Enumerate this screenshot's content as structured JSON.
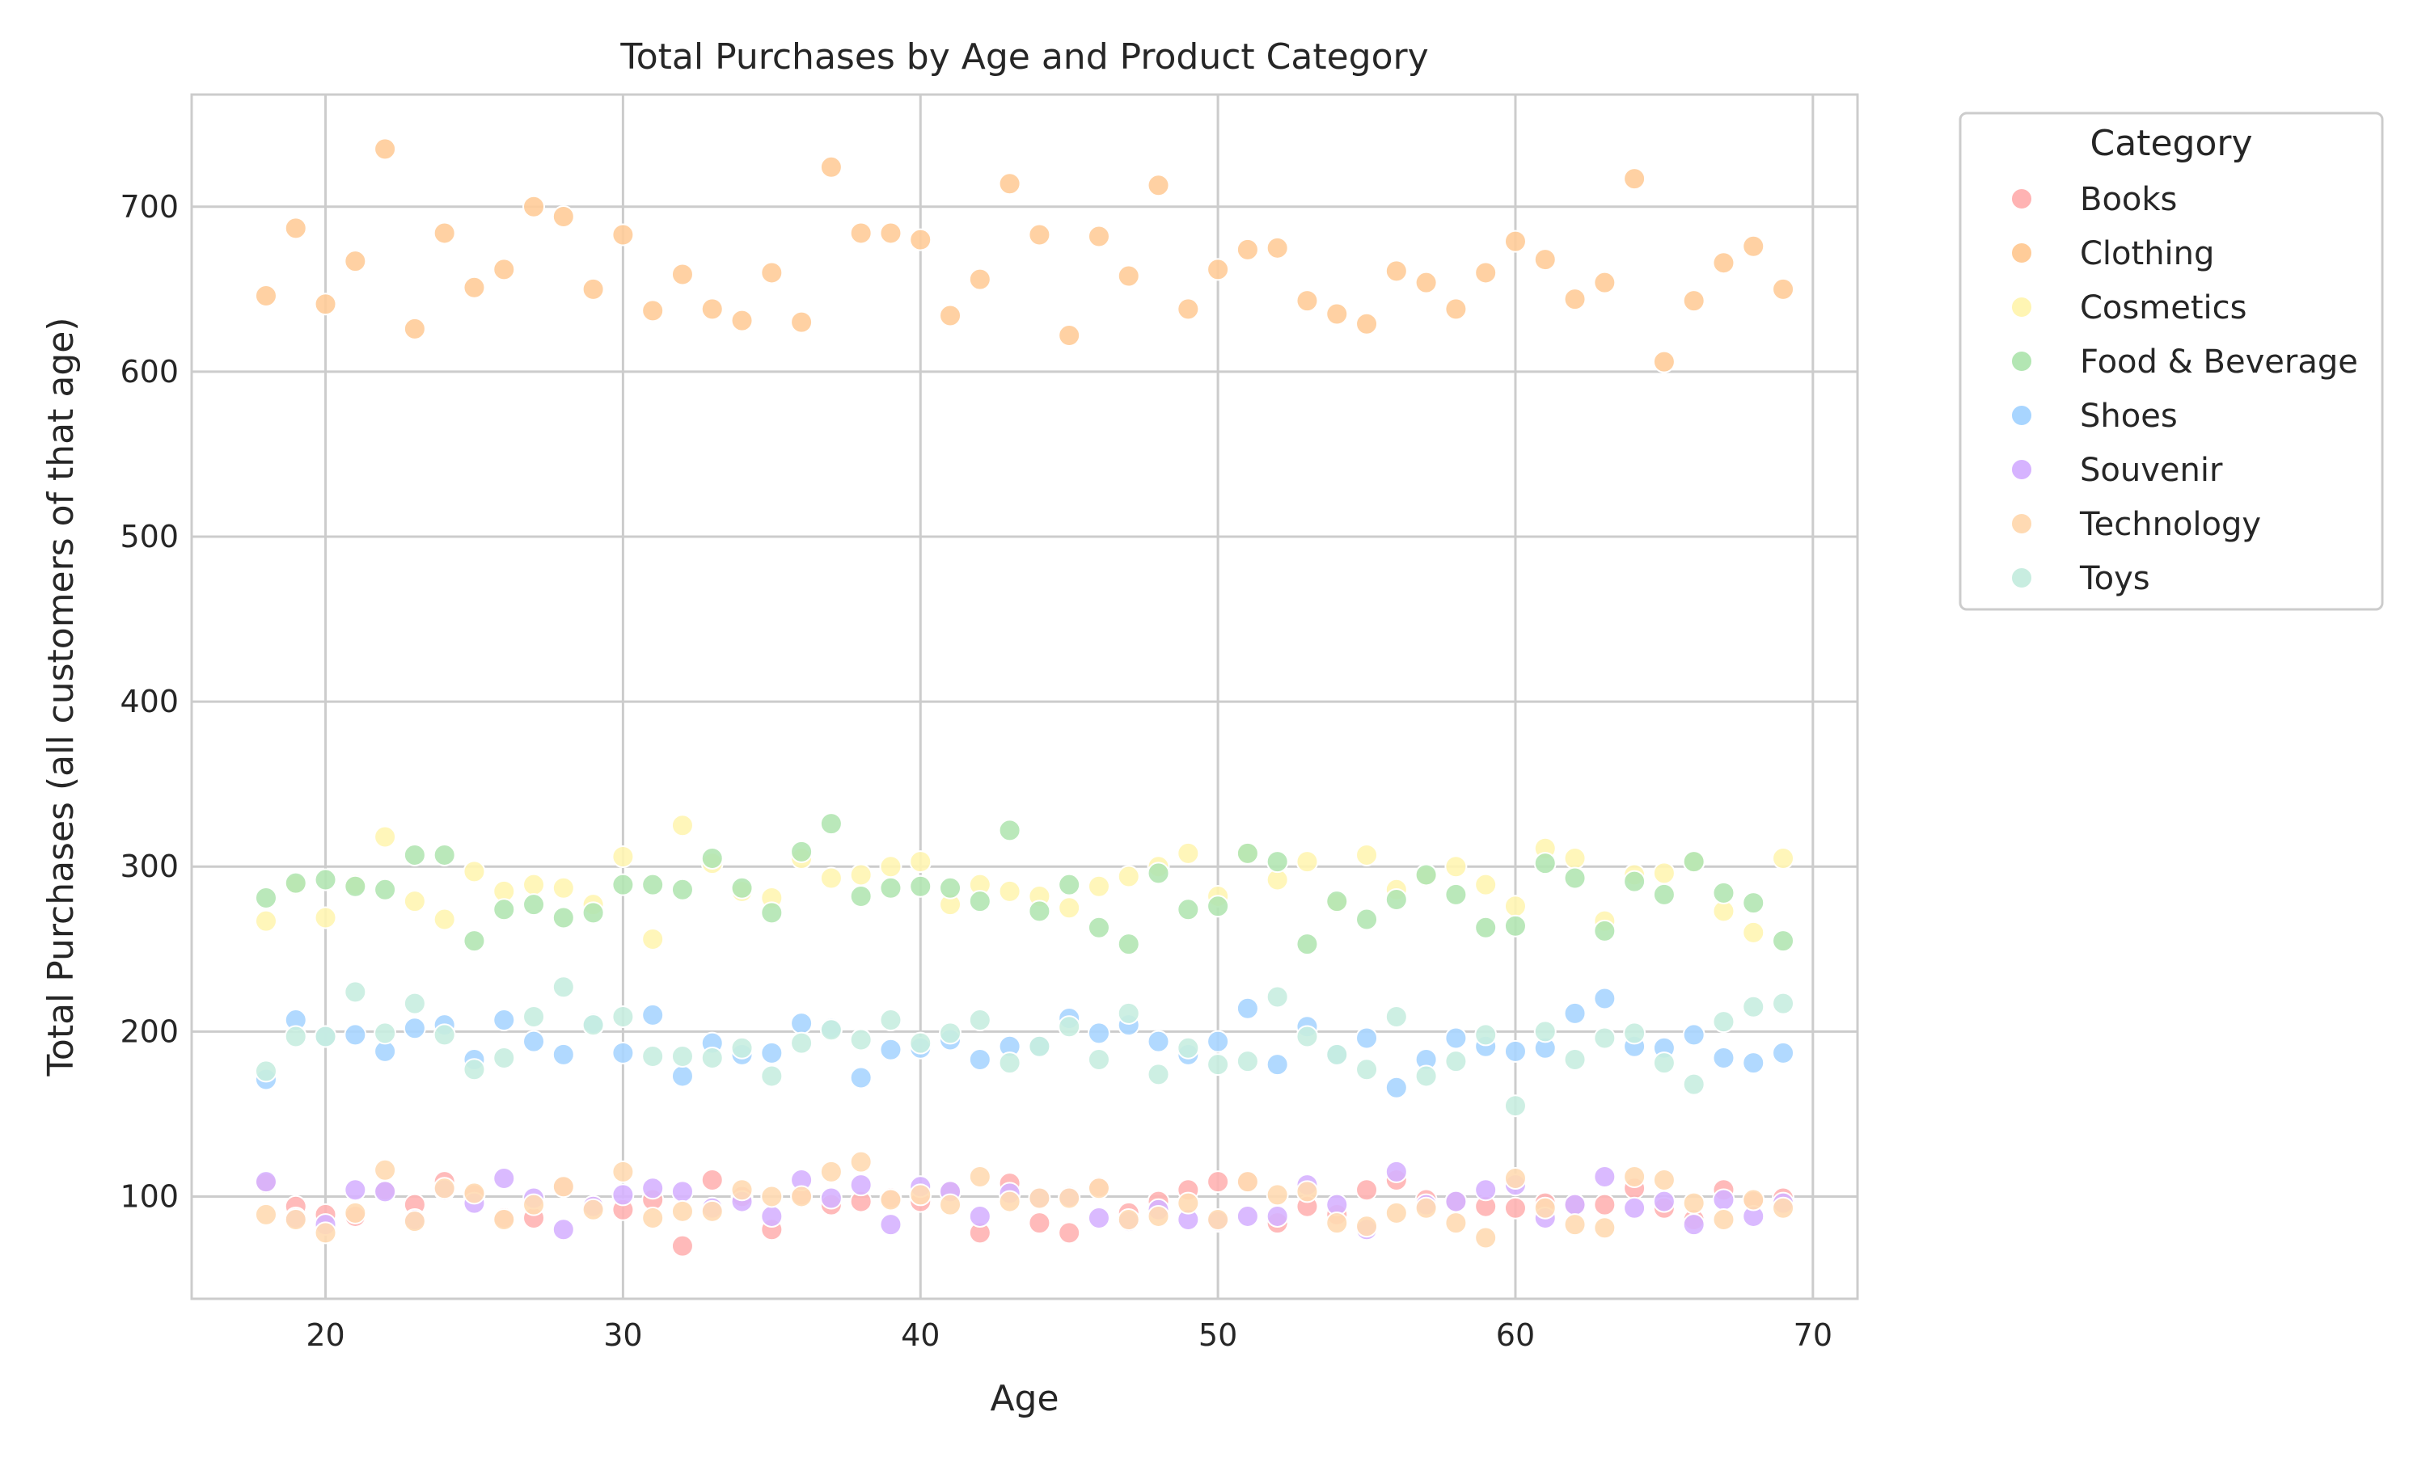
{
  "chart_data": {
    "type": "scatter",
    "title": "Total Purchases by Age and Product Category",
    "xlabel": "Age",
    "ylabel": "Total Purchases (all customers of that age)",
    "xlim": [
      15.5,
      71.5
    ],
    "ylim": [
      38,
      768
    ],
    "xticks": [
      20,
      30,
      40,
      50,
      60,
      70
    ],
    "yticks": [
      100,
      200,
      300,
      400,
      500,
      600,
      700
    ],
    "grid": true,
    "legend": {
      "title": "Category",
      "placement": "outside-top-right"
    },
    "x": [
      18,
      19,
      20,
      21,
      22,
      23,
      24,
      25,
      26,
      27,
      28,
      29,
      30,
      31,
      32,
      33,
      34,
      35,
      36,
      37,
      38,
      39,
      40,
      41,
      42,
      43,
      44,
      45,
      46,
      47,
      48,
      49,
      50,
      51,
      52,
      53,
      54,
      55,
      56,
      57,
      58,
      59,
      60,
      61,
      62,
      63,
      64,
      65,
      66,
      67,
      68,
      69
    ],
    "series": [
      {
        "name": "Books",
        "color": "#ffb3b3",
        "values": [
          108,
          94,
          89,
          88,
          104,
          95,
          109,
          101,
          87,
          87,
          106,
          94,
          92,
          98,
          70,
          110,
          100,
          80,
          101,
          95,
          97,
          99,
          97,
          103,
          78,
          108,
          84,
          78,
          106,
          90,
          97,
          104,
          109,
          109,
          84,
          94,
          89,
          104,
          110,
          98,
          97,
          94,
          93,
          96,
          95,
          95,
          105,
          93,
          86,
          104,
          97,
          99
        ]
      },
      {
        "name": "Clothing",
        "color": "#ffcc99",
        "values": [
          646,
          687,
          641,
          667,
          735,
          626,
          684,
          651,
          662,
          700,
          694,
          650,
          683,
          637,
          659,
          638,
          631,
          660,
          630,
          724,
          684,
          684,
          680,
          634,
          656,
          714,
          683,
          622,
          682,
          658,
          713,
          638,
          662,
          674,
          675,
          643,
          635,
          629,
          661,
          654,
          638,
          660,
          679,
          668,
          644,
          654,
          717,
          606,
          643,
          666,
          676,
          650
        ]
      },
      {
        "name": "Cosmetics",
        "color": "#fff5b3",
        "values": [
          267,
          289,
          269,
          289,
          318,
          279,
          268,
          297,
          285,
          289,
          287,
          277,
          306,
          256,
          325,
          302,
          285,
          281,
          305,
          293,
          295,
          300,
          303,
          277,
          289,
          285,
          282,
          275,
          288,
          294,
          300,
          308,
          282,
          308,
          292,
          303,
          278,
          307,
          286,
          294,
          300,
          289,
          276,
          311,
          305,
          267,
          295,
          296,
          303,
          273,
          260,
          305
        ]
      },
      {
        "name": "Food & Beverage",
        "color": "#b3e6b3",
        "values": [
          281,
          290,
          292,
          288,
          286,
          307,
          307,
          255,
          274,
          277,
          269,
          272,
          289,
          289,
          286,
          305,
          287,
          272,
          309,
          326,
          282,
          287,
          288,
          287,
          279,
          322,
          273,
          289,
          263,
          253,
          296,
          274,
          276,
          308,
          303,
          253,
          279,
          268,
          280,
          295,
          283,
          263,
          264,
          302,
          293,
          261,
          291,
          283,
          303,
          284,
          278,
          255
        ]
      },
      {
        "name": "Shoes",
        "color": "#a8d5ff",
        "values": [
          171,
          207,
          197,
          198,
          188,
          202,
          204,
          183,
          207,
          194,
          186,
          205,
          187,
          210,
          173,
          193,
          186,
          187,
          205,
          202,
          172,
          189,
          190,
          195,
          183,
          191,
          191,
          208,
          199,
          204,
          194,
          186,
          194,
          214,
          180,
          203,
          186,
          196,
          166,
          183,
          196,
          191,
          188,
          190,
          211,
          220,
          191,
          190,
          198,
          184,
          181,
          187
        ]
      },
      {
        "name": "Souvenir",
        "color": "#d6b3ff",
        "values": [
          109,
          87,
          83,
          104,
          103,
          86,
          104,
          96,
          111,
          99,
          80,
          94,
          101,
          105,
          103,
          93,
          97,
          88,
          110,
          99,
          107,
          83,
          106,
          103,
          88,
          102,
          99,
          100,
          87,
          85,
          92,
          86,
          85,
          88,
          88,
          107,
          95,
          80,
          115,
          95,
          97,
          104,
          107,
          87,
          95,
          112,
          93,
          97,
          83,
          98,
          88,
          96
        ]
      },
      {
        "name": "Technology",
        "color": "#ffdab3",
        "values": [
          89,
          86,
          78,
          90,
          116,
          85,
          105,
          102,
          86,
          95,
          106,
          92,
          115,
          87,
          91,
          91,
          104,
          100,
          100,
          115,
          121,
          98,
          101,
          95,
          112,
          97,
          99,
          99,
          105,
          86,
          88,
          96,
          86,
          109,
          101,
          103,
          84,
          82,
          90,
          93,
          84,
          75,
          111,
          93,
          83,
          81,
          112,
          110,
          96,
          86,
          98,
          93
        ]
      },
      {
        "name": "Toys",
        "color": "#c8ede0",
        "values": [
          176,
          197,
          197,
          224,
          199,
          217,
          198,
          177,
          184,
          209,
          227,
          204,
          209,
          185,
          185,
          184,
          190,
          173,
          193,
          201,
          195,
          207,
          193,
          199,
          207,
          181,
          191,
          203,
          183,
          211,
          174,
          190,
          180,
          182,
          221,
          197,
          186,
          177,
          209,
          173,
          182,
          198,
          155,
          200,
          183,
          196,
          199,
          181,
          168,
          206,
          215,
          217
        ]
      }
    ]
  }
}
